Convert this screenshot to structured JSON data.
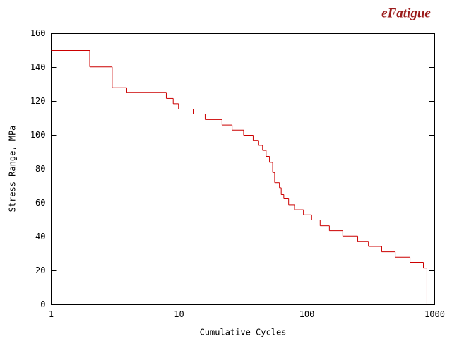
{
  "chart_data": {
    "type": "step",
    "logo": "eFatigue",
    "xlabel": "Cumulative Cycles",
    "ylabel": "Stress Range, MPa",
    "xlog": true,
    "xlim": [
      1,
      1000
    ],
    "xticks": [
      1,
      10,
      100,
      1000
    ],
    "ylim": [
      0,
      160
    ],
    "yticks": [
      0,
      20,
      40,
      60,
      80,
      100,
      120,
      140,
      160
    ],
    "color": "#cc0000",
    "x": [
      1,
      2,
      3,
      3.9,
      7.95,
      9,
      9.9,
      12.9,
      16,
      21.7,
      26,
      32,
      38,
      42,
      45,
      48,
      51,
      54,
      56,
      61,
      63,
      66,
      72,
      80,
      94,
      109,
      127,
      150,
      191,
      250,
      303,
      385,
      491,
      641,
      816,
      869
    ],
    "values": [
      150,
      140.3,
      128,
      125.3,
      121.7,
      118.6,
      115.4,
      112.5,
      109.2,
      106,
      103,
      100,
      97,
      94,
      91,
      87.5,
      84,
      78,
      72,
      69,
      65,
      62.5,
      59,
      56,
      53,
      50,
      46.6,
      43.7,
      40.5,
      37.4,
      34.4,
      31.2,
      28,
      25,
      21.6,
      0
    ]
  }
}
